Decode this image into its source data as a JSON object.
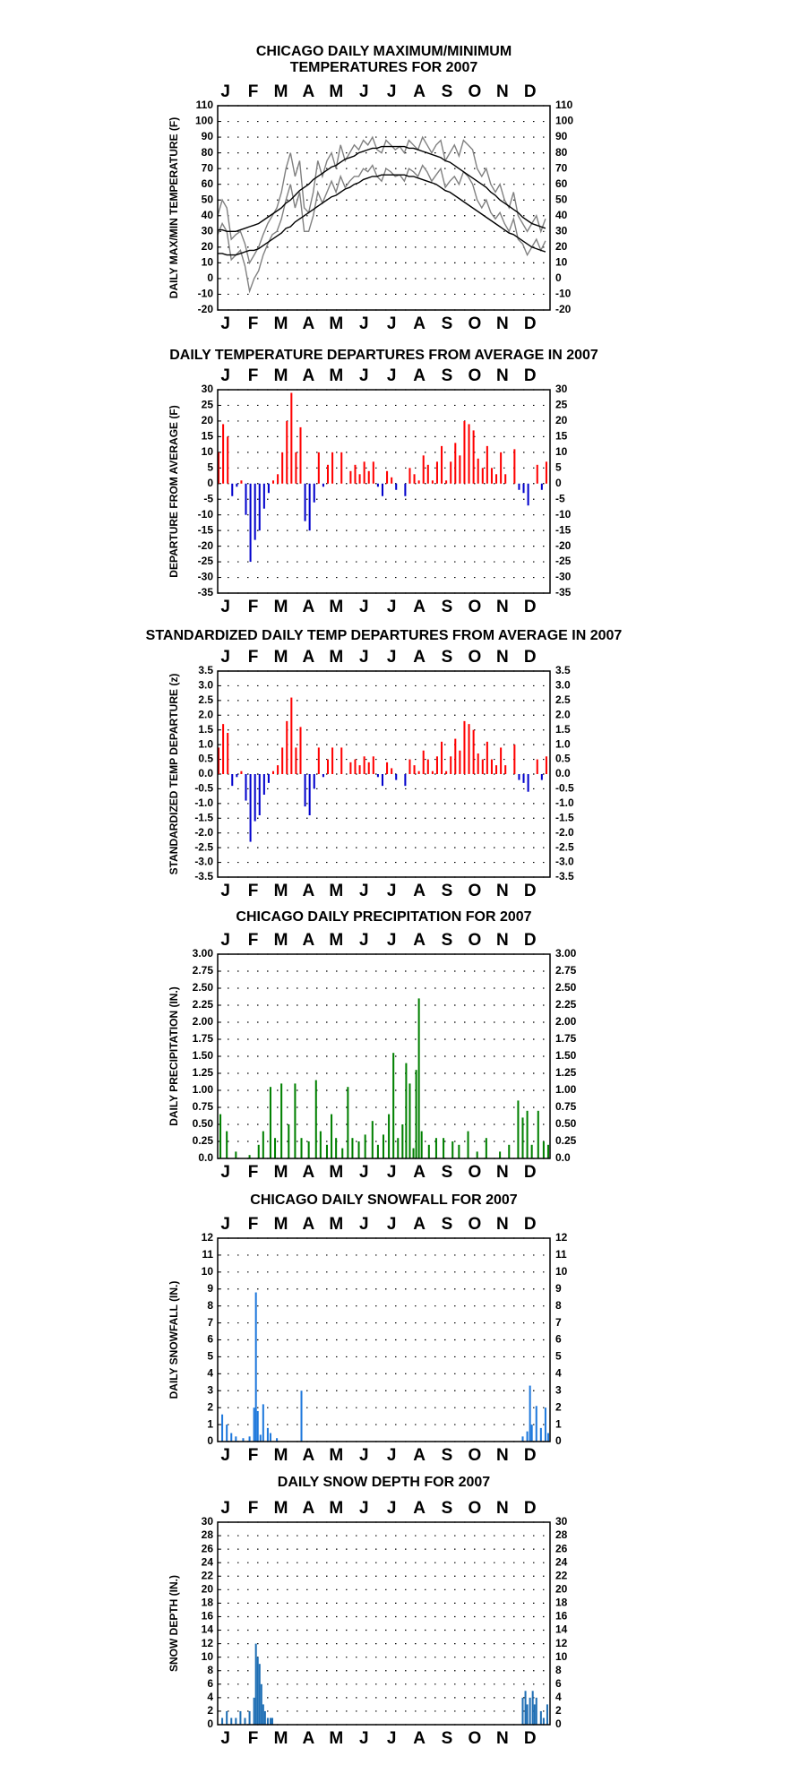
{
  "chart_data": [
    {
      "type": "line",
      "title": [
        "CHICAGO DAILY MAXIMUM/MINIMUM",
        "TEMPERATURES FOR 2007"
      ],
      "y_label": "DAILY MAX/MIN TEMPERATURE (F)",
      "months": [
        "J",
        "F",
        "M",
        "A",
        "M",
        "J",
        "J",
        "A",
        "S",
        "O",
        "N",
        "D"
      ],
      "xlim": [
        1,
        366
      ],
      "ylim": [
        -20,
        110
      ],
      "yticks": [
        -20,
        -10,
        0,
        10,
        20,
        30,
        40,
        50,
        60,
        70,
        80,
        90,
        100,
        110
      ],
      "grid": true,
      "x": [
        1,
        6,
        11,
        16,
        21,
        26,
        31,
        36,
        41,
        46,
        51,
        56,
        61,
        66,
        71,
        76,
        81,
        86,
        91,
        96,
        101,
        106,
        111,
        116,
        121,
        126,
        131,
        136,
        141,
        146,
        151,
        156,
        161,
        166,
        171,
        176,
        181,
        186,
        191,
        196,
        201,
        206,
        211,
        216,
        221,
        226,
        231,
        236,
        241,
        246,
        251,
        256,
        261,
        266,
        271,
        276,
        281,
        286,
        291,
        296,
        301,
        306,
        311,
        316,
        321,
        326,
        331,
        336,
        341,
        346,
        351,
        356,
        361
      ],
      "series": [
        {
          "color": "#808080",
          "values": [
            40,
            50,
            45,
            25,
            28,
            30,
            22,
            10,
            15,
            20,
            28,
            35,
            40,
            45,
            55,
            70,
            80,
            65,
            75,
            45,
            42,
            55,
            75,
            65,
            75,
            80,
            70,
            85,
            75,
            80,
            85,
            82,
            88,
            85,
            90,
            82,
            80,
            88,
            85,
            82,
            84,
            80,
            88,
            85,
            82,
            90,
            85,
            80,
            85,
            88,
            75,
            80,
            85,
            78,
            88,
            85,
            82,
            70,
            65,
            70,
            60,
            55,
            60,
            50,
            45,
            55,
            40,
            35,
            30,
            35,
            40,
            30,
            38
          ]
        },
        {
          "color": "#808080",
          "values": [
            28,
            35,
            30,
            12,
            15,
            18,
            8,
            -8,
            0,
            5,
            15,
            22,
            28,
            30,
            38,
            50,
            60,
            45,
            55,
            30,
            30,
            40,
            55,
            48,
            55,
            62,
            55,
            65,
            58,
            62,
            65,
            65,
            70,
            68,
            72,
            65,
            62,
            70,
            68,
            65,
            66,
            62,
            70,
            68,
            65,
            72,
            68,
            62,
            66,
            70,
            58,
            62,
            65,
            60,
            68,
            65,
            60,
            50,
            45,
            50,
            42,
            38,
            42,
            35,
            30,
            38,
            25,
            22,
            15,
            20,
            25,
            18,
            24
          ]
        },
        {
          "color": "#000000",
          "values": [
            31,
            31,
            30,
            30,
            30,
            31,
            32,
            33,
            34,
            35,
            37,
            39,
            41,
            43,
            45,
            48,
            50,
            53,
            56,
            58,
            60,
            63,
            65,
            67,
            69,
            71,
            72,
            74,
            76,
            77,
            78,
            80,
            81,
            82,
            83,
            83,
            84,
            84,
            84,
            84,
            84,
            84,
            83,
            83,
            82,
            81,
            80,
            79,
            78,
            77,
            75,
            74,
            72,
            70,
            68,
            66,
            64,
            62,
            60,
            58,
            55,
            53,
            50,
            48,
            46,
            44,
            42,
            39,
            37,
            35,
            34,
            33,
            32
          ]
        },
        {
          "color": "#000000",
          "values": [
            16,
            16,
            15,
            15,
            15,
            16,
            17,
            18,
            18,
            19,
            21,
            23,
            25,
            27,
            29,
            32,
            33,
            36,
            38,
            40,
            42,
            44,
            46,
            48,
            50,
            52,
            53,
            55,
            57,
            58,
            60,
            61,
            63,
            64,
            65,
            65,
            66,
            66,
            66,
            66,
            66,
            66,
            65,
            65,
            64,
            63,
            62,
            61,
            60,
            58,
            56,
            55,
            53,
            51,
            49,
            47,
            45,
            43,
            41,
            39,
            37,
            35,
            33,
            31,
            29,
            28,
            26,
            24,
            22,
            20,
            19,
            18,
            17
          ]
        }
      ]
    },
    {
      "type": "bar",
      "title": [
        "DAILY TEMPERATURE DEPARTURES FROM AVERAGE IN 2007"
      ],
      "y_label": "DEPARTURE FROM AVERAGE (F)",
      "months": [
        "J",
        "F",
        "M",
        "A",
        "M",
        "J",
        "J",
        "A",
        "S",
        "O",
        "N",
        "D"
      ],
      "xlim": [
        1,
        366
      ],
      "ylim": [
        -35,
        30
      ],
      "yticks": [
        -35,
        -30,
        -25,
        -20,
        -15,
        -10,
        -5,
        0,
        5,
        10,
        15,
        20,
        25,
        30
      ],
      "grid": true,
      "positive_color": "#ff0000",
      "negative_color": "#0000cc",
      "x": [
        1,
        6,
        11,
        16,
        21,
        26,
        31,
        36,
        41,
        46,
        51,
        56,
        61,
        66,
        71,
        76,
        81,
        86,
        91,
        96,
        101,
        106,
        111,
        116,
        121,
        126,
        131,
        136,
        141,
        146,
        151,
        156,
        161,
        166,
        171,
        176,
        181,
        186,
        191,
        196,
        201,
        206,
        211,
        216,
        221,
        226,
        231,
        236,
        241,
        246,
        251,
        256,
        261,
        266,
        271,
        276,
        281,
        286,
        291,
        296,
        301,
        306,
        311,
        316,
        321,
        326,
        331,
        336,
        341,
        346,
        351,
        356,
        361
      ],
      "values": [
        10,
        19,
        15,
        -4,
        -1,
        1,
        -10,
        -25,
        -18,
        -15,
        -8,
        -3,
        1,
        3,
        10,
        20,
        29,
        10,
        18,
        -12,
        -15,
        -6,
        10,
        -1,
        6,
        10,
        0,
        10,
        0,
        4,
        6,
        3,
        7,
        4,
        7,
        -1,
        -4,
        4,
        2,
        -2,
        0,
        -4,
        5,
        3,
        1,
        9,
        6,
        1,
        7,
        12,
        1,
        7,
        13,
        9,
        20,
        19,
        17,
        8,
        5,
        12,
        5,
        3,
        10,
        3,
        0,
        11,
        -2,
        -3,
        -7,
        0,
        6,
        -2,
        7
      ]
    },
    {
      "type": "bar",
      "title": [
        "STANDARDIZED DAILY TEMP DEPARTURES FROM AVERAGE IN 2007"
      ],
      "y_label": "STANDARDIZED TEMP DEPARTURE (z)",
      "months": [
        "J",
        "F",
        "M",
        "A",
        "M",
        "J",
        "J",
        "A",
        "S",
        "O",
        "N",
        "D"
      ],
      "xlim": [
        1,
        366
      ],
      "ylim": [
        -3.5,
        3.5
      ],
      "yticks": [
        -3.5,
        {
          "value": -3,
          "label": "-3.0"
        },
        -2.5,
        {
          "value": -2,
          "label": "-2.0"
        },
        -1.5,
        {
          "value": -1,
          "label": "-1.0"
        },
        -0.5,
        {
          "value": 0,
          "label": "0.0"
        },
        0.5,
        {
          "value": 1,
          "label": "1.0"
        },
        1.5,
        {
          "value": 2,
          "label": "2.0"
        },
        2.5,
        {
          "value": 3,
          "label": "3.0"
        },
        3.5
      ],
      "grid": true,
      "positive_color": "#ff0000",
      "negative_color": "#0000cc",
      "x": [
        1,
        6,
        11,
        16,
        21,
        26,
        31,
        36,
        41,
        46,
        51,
        56,
        61,
        66,
        71,
        76,
        81,
        86,
        91,
        96,
        101,
        106,
        111,
        116,
        121,
        126,
        131,
        136,
        141,
        146,
        151,
        156,
        161,
        166,
        171,
        176,
        181,
        186,
        191,
        196,
        201,
        206,
        211,
        216,
        221,
        226,
        231,
        236,
        241,
        246,
        251,
        256,
        261,
        266,
        271,
        276,
        281,
        286,
        291,
        296,
        301,
        306,
        311,
        316,
        321,
        326,
        331,
        336,
        341,
        346,
        351,
        356,
        361
      ],
      "values": [
        0.9,
        1.7,
        1.4,
        -0.4,
        -0.1,
        0.1,
        -0.9,
        -2.3,
        -1.6,
        -1.4,
        -0.7,
        -0.3,
        0.1,
        0.3,
        0.9,
        1.8,
        2.6,
        0.9,
        1.6,
        -1.1,
        -1.4,
        -0.5,
        0.9,
        -0.1,
        0.5,
        0.9,
        0,
        0.9,
        0,
        0.4,
        0.5,
        0.3,
        0.6,
        0.4,
        0.6,
        -0.1,
        -0.4,
        0.4,
        0.2,
        -0.2,
        0,
        -0.4,
        0.5,
        0.3,
        0.1,
        0.8,
        0.5,
        0.1,
        0.6,
        1.1,
        0.1,
        0.6,
        1.2,
        0.8,
        1.8,
        1.7,
        1.5,
        0.7,
        0.5,
        1.1,
        0.5,
        0.3,
        0.9,
        0.3,
        0,
        1,
        -0.2,
        -0.3,
        -0.6,
        0,
        0.5,
        -0.2,
        0.6
      ]
    },
    {
      "type": "bar",
      "title": [
        "CHICAGO DAILY PRECIPITATION FOR 2007"
      ],
      "y_label": "DAILY PRECIPITATION (IN.)",
      "months": [
        "J",
        "F",
        "M",
        "A",
        "M",
        "J",
        "J",
        "A",
        "S",
        "O",
        "N",
        "D"
      ],
      "xlim": [
        1,
        366
      ],
      "ylim": [
        0,
        3
      ],
      "yticks": [
        {
          "value": 0,
          "label": "0.0"
        },
        0.25,
        {
          "value": 0.5,
          "label": "0.50"
        },
        0.75,
        {
          "value": 1,
          "label": "1.00"
        },
        1.25,
        {
          "value": 1.5,
          "label": "1.50"
        },
        1.75,
        {
          "value": 2,
          "label": "2.00"
        },
        2.25,
        {
          "value": 2.5,
          "label": "2.50"
        },
        2.75,
        {
          "value": 3,
          "label": "3.00"
        }
      ],
      "grid": true,
      "color": "#008000",
      "x": [
        3,
        10,
        20,
        35,
        45,
        50,
        58,
        63,
        70,
        78,
        85,
        92,
        100,
        108,
        113,
        120,
        125,
        130,
        137,
        143,
        148,
        155,
        162,
        170,
        176,
        182,
        188,
        193,
        198,
        203,
        207,
        211,
        215,
        218,
        221,
        224,
        232,
        240,
        248,
        258,
        265,
        275,
        285,
        295,
        310,
        320,
        330,
        335,
        340,
        345,
        352,
        358,
        363
      ],
      "values": [
        0.65,
        0.4,
        0.1,
        0.05,
        0.2,
        0.4,
        1.05,
        0.3,
        1.1,
        0.5,
        1.1,
        0.3,
        0.25,
        1.15,
        0.4,
        0.2,
        0.65,
        0.3,
        0.15,
        1.05,
        0.3,
        0.25,
        0.35,
        0.55,
        0.2,
        0.35,
        0.65,
        1.55,
        0.3,
        0.5,
        1.4,
        1.1,
        0.15,
        1.3,
        2.35,
        0.4,
        0.2,
        0.3,
        0.3,
        0.25,
        0.2,
        0.4,
        0.1,
        0.3,
        0.1,
        0.2,
        0.85,
        0.6,
        0.7,
        0.2,
        0.7,
        0.25,
        0.2
      ]
    },
    {
      "type": "bar",
      "title": [
        "CHICAGO DAILY SNOWFALL FOR 2007"
      ],
      "y_label": "DAILY SNOWFALL (IN.)",
      "months": [
        "J",
        "F",
        "M",
        "A",
        "M",
        "J",
        "J",
        "A",
        "S",
        "O",
        "N",
        "D"
      ],
      "xlim": [
        1,
        366
      ],
      "ylim": [
        0,
        12
      ],
      "yticks": [
        0,
        1,
        2,
        3,
        4,
        5,
        6,
        7,
        8,
        9,
        10,
        11,
        12
      ],
      "grid": true,
      "color": "#1e78dc",
      "x": [
        5,
        10,
        15,
        20,
        28,
        35,
        40,
        42,
        44,
        47,
        50,
        55,
        58,
        65,
        92,
        335,
        340,
        343,
        345,
        350,
        355,
        360,
        363
      ],
      "values": [
        1.6,
        1.0,
        0.5,
        0.3,
        0.2,
        0.3,
        2.0,
        8.8,
        1.8,
        0.4,
        2.2,
        0.8,
        0.5,
        0.2,
        3.0,
        0.3,
        0.6,
        3.3,
        1.0,
        2.1,
        0.8,
        2.0,
        0.5
      ]
    },
    {
      "type": "bar",
      "title": [
        "DAILY SNOW DEPTH FOR 2007"
      ],
      "y_label": "SNOW DEPTH (IN.)",
      "months": [
        "J",
        "F",
        "M",
        "A",
        "M",
        "J",
        "J",
        "A",
        "S",
        "O",
        "N",
        "D"
      ],
      "xlim": [
        1,
        366
      ],
      "ylim": [
        0,
        30
      ],
      "yticks": [
        0,
        2,
        4,
        6,
        8,
        10,
        12,
        14,
        16,
        18,
        20,
        22,
        24,
        26,
        28,
        30
      ],
      "grid": true,
      "color": "#1e6eb4",
      "x": [
        5,
        10,
        15,
        20,
        25,
        30,
        35,
        40,
        42,
        44,
        46,
        48,
        50,
        52,
        55,
        58,
        60,
        335,
        338,
        340,
        343,
        346,
        348,
        350,
        355,
        358,
        362
      ],
      "values": [
        1,
        2,
        1,
        1,
        2,
        1,
        2,
        4,
        12,
        10,
        9,
        6,
        3,
        2,
        1,
        1,
        1,
        4,
        5,
        3,
        4,
        5,
        3,
        4,
        2,
        1,
        3
      ]
    }
  ]
}
